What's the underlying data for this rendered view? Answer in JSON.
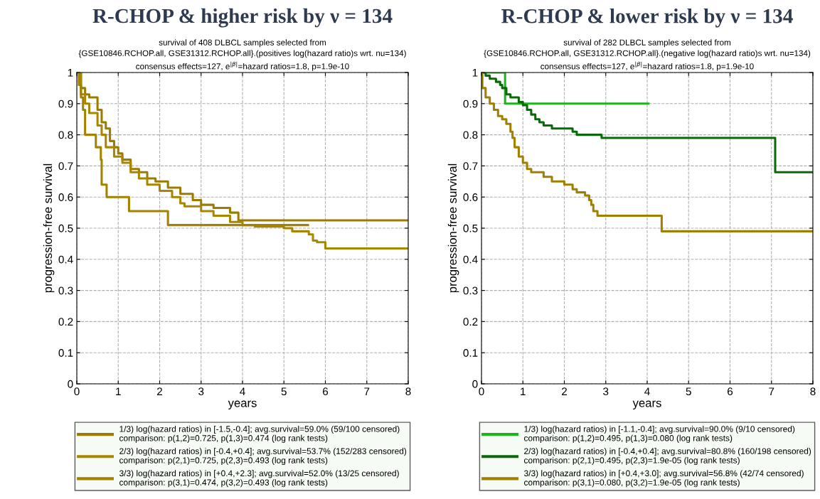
{
  "chart_data": [
    {
      "type": "step",
      "title": "R-CHOP & higher risk by ν = 134",
      "subtitle": "survival of 408 DLBCL samples selected from\n{GSE10846.RCHOP.all, GSE31312.RCHOP.all}.(positives log(hazard ratio)s wrt. nu=134)\nconsensus effects=127, e$^{|β|}$=hazard ratios=1.8, p=1.9e-10",
      "xlabel": "years",
      "ylabel": "progression-free survival",
      "xlim": [
        0,
        8
      ],
      "xticks": [
        0,
        1,
        2,
        3,
        4,
        5,
        6,
        7,
        8
      ],
      "ylim": [
        0,
        1
      ],
      "yticks": [
        0,
        0.1,
        0.2,
        0.3,
        0.4,
        0.5,
        0.6,
        0.7,
        0.8,
        0.9,
        1
      ],
      "grid": true,
      "legend": "bottom",
      "line_style": "solid",
      "series": [
        {
          "name": "1/3) log(hazard ratios) in [-1.5,-0.4]; avg.survival=59.0% (59/100 censored)\ncomparison: p(1,2)=0.725, p(1,3)=0.474 (log rank tests)",
          "color": "#9b7c00",
          "x": [
            0,
            0.1,
            0.2,
            0.3,
            0.5,
            0.6,
            0.7,
            0.8,
            0.9,
            1.0,
            1.1,
            1.3,
            1.5,
            1.7,
            1.9,
            2.2,
            2.5,
            2.8,
            3.0,
            3.3,
            3.7,
            3.9,
            8
          ],
          "values": [
            1,
            0.95,
            0.93,
            0.92,
            0.88,
            0.84,
            0.82,
            0.78,
            0.76,
            0.74,
            0.72,
            0.69,
            0.68,
            0.66,
            0.65,
            0.63,
            0.61,
            0.59,
            0.575,
            0.565,
            0.55,
            0.525,
            0.525
          ]
        },
        {
          "name": "2/3) log(hazard ratios) in [-0.4,+0.4]; avg.survival=53.7% (152/283 censored)\ncomparison: p(2,1)=0.725, p(2,3)=0.493 (log rank tests)",
          "color": "#a88600",
          "x": [
            0,
            0.1,
            0.2,
            0.3,
            0.5,
            0.6,
            0.7,
            0.9,
            1.1,
            1.3,
            1.5,
            1.7,
            2.0,
            2.3,
            2.5,
            2.6,
            3.0,
            3.3,
            3.7,
            4.0,
            4.3,
            5.0,
            5.2,
            5.6,
            5.7,
            5.8,
            6.0,
            8
          ],
          "values": [
            1,
            0.93,
            0.9,
            0.87,
            0.83,
            0.8,
            0.76,
            0.73,
            0.71,
            0.68,
            0.66,
            0.64,
            0.62,
            0.6,
            0.58,
            0.57,
            0.555,
            0.54,
            0.52,
            0.51,
            0.505,
            0.5,
            0.49,
            0.48,
            0.46,
            0.455,
            0.435,
            0.435
          ]
        },
        {
          "name": "3/3) log(hazard ratios) in [+0.4,+2.3]; avg.survival=52.0% (13/25 censored)\ncomparison: p(3,1)=0.474, p(3,2)=0.493 (log rank tests)",
          "color": "#a38200",
          "x": [
            0,
            0.05,
            0.1,
            0.15,
            0.2,
            0.46,
            0.58,
            0.6,
            0.72,
            1.26,
            2.2,
            5.58
          ],
          "values": [
            1,
            0.96,
            0.92,
            0.88,
            0.8,
            0.76,
            0.72,
            0.64,
            0.6,
            0.555,
            0.51,
            0.51
          ]
        }
      ]
    },
    {
      "type": "step",
      "title": "R-CHOP & lower risk by ν = 134",
      "subtitle": "survival of 282 DLBCL samples selected from\n{GSE10846.RCHOP.all, GSE31312.RCHOP.all}.(negative log(hazard ratio)s wrt. nu=134)\nconsensus effects=127, e$^{|β|}$=hazard ratios=1.8, p=1.9e-10",
      "xlabel": "years",
      "ylabel": "progression-free survival",
      "xlim": [
        0,
        8
      ],
      "xticks": [
        0,
        1,
        2,
        3,
        4,
        5,
        6,
        7,
        8
      ],
      "ylim": [
        0,
        1
      ],
      "yticks": [
        0,
        0.1,
        0.2,
        0.3,
        0.4,
        0.5,
        0.6,
        0.7,
        0.8,
        0.9,
        1
      ],
      "grid": true,
      "legend": "bottom",
      "line_style": "solid",
      "series": [
        {
          "name": "1/3) log(hazard ratios) in [-1.1,-0.4]; avg.survival=90.0% (9/10 censored)\ncomparison: p(1,2)=0.495, p(1,3)=0.080 (log rank tests)",
          "color": "#1fb41f",
          "x": [
            0,
            0.57,
            4.03
          ],
          "values": [
            1,
            0.9,
            0.9
          ]
        },
        {
          "name": "2/3) log(hazard ratios) in [-0.4,+0.4]; avg.survival=80.8% (160/198 censored)\ncomparison: p(2,1)=0.495, p(2,3)=1.9e-05 (log rank tests)",
          "color": "#0a6a0a",
          "x": [
            0,
            0.1,
            0.2,
            0.35,
            0.45,
            0.5,
            0.6,
            0.7,
            0.9,
            1.0,
            1.1,
            1.2,
            1.3,
            1.4,
            1.5,
            1.7,
            2.2,
            2.3,
            2.9,
            7.09,
            8
          ],
          "values": [
            1,
            0.99,
            0.98,
            0.97,
            0.96,
            0.95,
            0.93,
            0.92,
            0.905,
            0.895,
            0.88,
            0.865,
            0.85,
            0.84,
            0.83,
            0.82,
            0.81,
            0.8,
            0.79,
            0.68,
            0.68
          ]
        },
        {
          "name": "3/3) log(hazard ratios) in [+0.4,+3.0]; avg.survival=56.8% (42/74 censored)\ncomparison: p(3,1)=0.080, p(3,2)=1.9e-05 (log rank tests)",
          "color": "#a08000",
          "x": [
            0,
            0.02,
            0.1,
            0.2,
            0.3,
            0.4,
            0.5,
            0.6,
            0.7,
            0.75,
            0.8,
            0.9,
            1.0,
            1.1,
            1.2,
            1.5,
            1.7,
            2.0,
            2.2,
            2.3,
            2.5,
            2.6,
            2.65,
            2.7,
            2.8,
            4.35,
            8
          ],
          "values": [
            1,
            0.95,
            0.92,
            0.9,
            0.88,
            0.86,
            0.85,
            0.835,
            0.81,
            0.79,
            0.76,
            0.73,
            0.71,
            0.69,
            0.68,
            0.665,
            0.65,
            0.64,
            0.625,
            0.615,
            0.605,
            0.59,
            0.575,
            0.555,
            0.54,
            0.49,
            0.49
          ]
        }
      ]
    }
  ]
}
